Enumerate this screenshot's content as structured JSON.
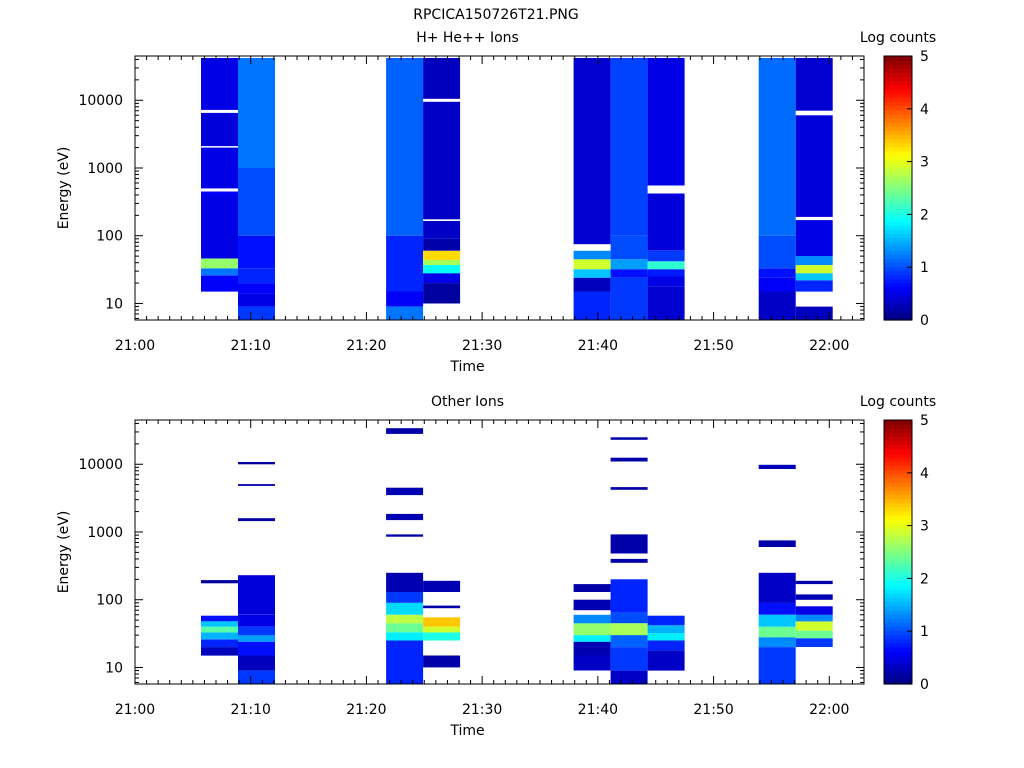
{
  "figure": {
    "title": "RPCICA150726T21.PNG"
  },
  "chart_data": [
    {
      "type": "heatmap",
      "title": "H+ He++ Ions",
      "xlabel": "Time",
      "ylabel": "Energy (eV)",
      "x_ticks": [
        "21:00",
        "21:10",
        "21:20",
        "21:30",
        "21:40",
        "21:50",
        "22:00"
      ],
      "y_ticks": [
        "10",
        "100",
        "1000",
        "10000"
      ],
      "y_scale": "log",
      "xlim_minutes": [
        0,
        63
      ],
      "ylim_eV": [
        5.7,
        45000
      ],
      "colorbar": {
        "label": "Log counts",
        "ticks": [
          "0",
          "1",
          "2",
          "3",
          "4",
          "5"
        ],
        "range": [
          0,
          5
        ]
      },
      "columns": [
        {
          "t0": 5.7,
          "t1": 8.9,
          "bins": [
            [
              15,
              26,
              0.6
            ],
            [
              26,
              33,
              1.2
            ],
            [
              33,
              46,
              2.6
            ],
            [
              46,
              400,
              0.5
            ],
            [
              400,
              450,
              0.6
            ],
            [
              500,
              2000,
              0.5
            ],
            [
              2100,
              6500,
              0.45
            ],
            [
              7200,
              42000,
              0.5
            ]
          ]
        },
        {
          "t0": 8.9,
          "t1": 12.1,
          "bins": [
            [
              5.7,
              9,
              0.9
            ],
            [
              9,
              14,
              0.5
            ],
            [
              14,
              20,
              0.6
            ],
            [
              20,
              33,
              0.8
            ],
            [
              33,
              100,
              0.7
            ],
            [
              100,
              1000,
              1.0
            ],
            [
              1000,
              42000,
              1.2
            ]
          ]
        },
        {
          "t0": 21.7,
          "t1": 24.9,
          "bins": [
            [
              5.7,
              9,
              1.2
            ],
            [
              9,
              15,
              0.6
            ],
            [
              15,
              100,
              0.8
            ],
            [
              100,
              42000,
              1.1
            ]
          ]
        },
        {
          "t0": 24.9,
          "t1": 28.1,
          "bins": [
            [
              10,
              20,
              0.15
            ],
            [
              20,
              28,
              0.5
            ],
            [
              28,
              37,
              1.9
            ],
            [
              37,
              44,
              2.7
            ],
            [
              44,
              60,
              3.3
            ],
            [
              60,
              90,
              0.2
            ],
            [
              90,
              165,
              0.35
            ],
            [
              175,
              9500,
              0.35
            ],
            [
              10500,
              42000,
              0.3
            ]
          ]
        },
        {
          "t0": 37.9,
          "t1": 41.1,
          "bins": [
            [
              5.7,
              15,
              0.8
            ],
            [
              15,
              24,
              0.3
            ],
            [
              24,
              32,
              1.6
            ],
            [
              32,
              45,
              2.9
            ],
            [
              45,
              60,
              1.3
            ],
            [
              75,
              42000,
              0.4
            ]
          ]
        },
        {
          "t0": 41.1,
          "t1": 44.3,
          "bins": [
            [
              5.7,
              24,
              0.9
            ],
            [
              24,
              32,
              0.7
            ],
            [
              32,
              45,
              1.4
            ],
            [
              45,
              100,
              1.0
            ],
            [
              100,
              42000,
              0.95
            ]
          ]
        },
        {
          "t0": 44.3,
          "t1": 47.5,
          "bins": [
            [
              5.7,
              18,
              0.4
            ],
            [
              18,
              25,
              0.5
            ],
            [
              25,
              32,
              0.75
            ],
            [
              32,
              42,
              2.1
            ],
            [
              42,
              60,
              0.9
            ],
            [
              60,
              420,
              0.45
            ],
            [
              550,
              42000,
              0.5
            ]
          ]
        },
        {
          "t0": 53.9,
          "t1": 57.1,
          "bins": [
            [
              5.7,
              15,
              0.35
            ],
            [
              15,
              24,
              0.6
            ],
            [
              24,
              33,
              0.7
            ],
            [
              33,
              100,
              1.0
            ],
            [
              100,
              42000,
              1.15
            ]
          ]
        },
        {
          "t0": 57.1,
          "t1": 60.3,
          "bins": [
            [
              5.7,
              9,
              0.3
            ],
            [
              15,
              22,
              0.8
            ],
            [
              22,
              28,
              1.6
            ],
            [
              28,
              37,
              2.9
            ],
            [
              37,
              50,
              1.3
            ],
            [
              50,
              170,
              0.5
            ],
            [
              190,
              6000,
              0.45
            ],
            [
              7000,
              42000,
              0.4
            ]
          ]
        }
      ]
    },
    {
      "type": "heatmap",
      "title": "Other Ions",
      "xlabel": "Time",
      "ylabel": "Energy (eV)",
      "x_ticks": [
        "21:00",
        "21:10",
        "21:20",
        "21:30",
        "21:40",
        "21:50",
        "22:00"
      ],
      "y_ticks": [
        "10",
        "100",
        "1000",
        "10000"
      ],
      "y_scale": "log",
      "xlim_minutes": [
        0,
        63
      ],
      "ylim_eV": [
        5.7,
        45000
      ],
      "colorbar": {
        "label": "Log counts",
        "ticks": [
          "0",
          "1",
          "2",
          "3",
          "4",
          "5"
        ],
        "range": [
          0,
          5
        ]
      },
      "columns": [
        {
          "t0": 5.7,
          "t1": 8.9,
          "bins": [
            [
              15,
              20,
              0.3
            ],
            [
              20,
              26,
              0.8
            ],
            [
              26,
              33,
              1.5
            ],
            [
              33,
              40,
              2.3
            ],
            [
              40,
              48,
              1.6
            ],
            [
              48,
              58,
              0.7
            ],
            [
              175,
              195,
              0.15
            ]
          ]
        },
        {
          "t0": 8.9,
          "t1": 12.1,
          "bins": [
            [
              5.7,
              9,
              0.9
            ],
            [
              9,
              15,
              0.3
            ],
            [
              15,
              24,
              0.7
            ],
            [
              24,
              30,
              1.4
            ],
            [
              30,
              40,
              0.9
            ],
            [
              40,
              60,
              0.5
            ],
            [
              60,
              230,
              0.45
            ],
            [
              1450,
              1600,
              0.2
            ],
            [
              4800,
              5100,
              0.2
            ],
            [
              10000,
              10800,
              0.15
            ]
          ]
        },
        {
          "t0": 21.7,
          "t1": 24.9,
          "bins": [
            [
              5.7,
              25,
              0.8
            ],
            [
              25,
              33,
              1.8
            ],
            [
              33,
              45,
              2.4
            ],
            [
              45,
              60,
              2.8
            ],
            [
              60,
              90,
              1.7
            ],
            [
              90,
              130,
              0.9
            ],
            [
              130,
              250,
              0.25
            ],
            [
              850,
              920,
              0.2
            ],
            [
              1500,
              1850,
              0.25
            ],
            [
              3500,
              4500,
              0.25
            ],
            [
              28000,
              34000,
              0.2
            ]
          ]
        },
        {
          "t0": 24.9,
          "t1": 28.1,
          "bins": [
            [
              10,
              15,
              0.2
            ],
            [
              25,
              33,
              2.0
            ],
            [
              33,
              40,
              2.9
            ],
            [
              40,
              55,
              3.4
            ],
            [
              75,
              82,
              0.2
            ],
            [
              130,
              190,
              0.25
            ]
          ]
        },
        {
          "t0": 37.9,
          "t1": 41.1,
          "bins": [
            [
              9,
              15,
              0.35
            ],
            [
              15,
              24,
              0.25
            ],
            [
              24,
              30,
              1.8
            ],
            [
              30,
              45,
              2.6
            ],
            [
              45,
              60,
              1.3
            ],
            [
              70,
              100,
              0.25
            ],
            [
              130,
              170,
              0.2
            ]
          ]
        },
        {
          "t0": 41.1,
          "t1": 44.3,
          "bins": [
            [
              5.7,
              9,
              0.35
            ],
            [
              9,
              20,
              0.9
            ],
            [
              20,
              30,
              1.1
            ],
            [
              30,
              45,
              2.7
            ],
            [
              45,
              65,
              1.0
            ],
            [
              65,
              200,
              0.8
            ],
            [
              350,
              400,
              0.2
            ],
            [
              480,
              920,
              0.2
            ],
            [
              4200,
              4600,
              0.2
            ],
            [
              11000,
              12500,
              0.2
            ],
            [
              23000,
              25000,
              0.2
            ]
          ]
        },
        {
          "t0": 44.3,
          "t1": 47.5,
          "bins": [
            [
              9,
              18,
              0.35
            ],
            [
              18,
              25,
              0.8
            ],
            [
              25,
              32,
              1.8
            ],
            [
              32,
              42,
              1.5
            ],
            [
              42,
              58,
              0.8
            ]
          ]
        },
        {
          "t0": 53.9,
          "t1": 57.1,
          "bins": [
            [
              5.7,
              20,
              0.9
            ],
            [
              20,
              28,
              1.3
            ],
            [
              28,
              40,
              2.4
            ],
            [
              40,
              60,
              1.6
            ],
            [
              60,
              90,
              0.7
            ],
            [
              90,
              250,
              0.35
            ],
            [
              600,
              750,
              0.2
            ],
            [
              8500,
              9800,
              0.3
            ]
          ]
        },
        {
          "t0": 57.1,
          "t1": 60.3,
          "bins": [
            [
              20,
              27,
              0.9
            ],
            [
              27,
              35,
              2.4
            ],
            [
              35,
              48,
              2.9
            ],
            [
              48,
              60,
              1.3
            ],
            [
              60,
              80,
              0.5
            ],
            [
              100,
              120,
              0.25
            ],
            [
              170,
              190,
              0.2
            ]
          ]
        }
      ]
    }
  ]
}
